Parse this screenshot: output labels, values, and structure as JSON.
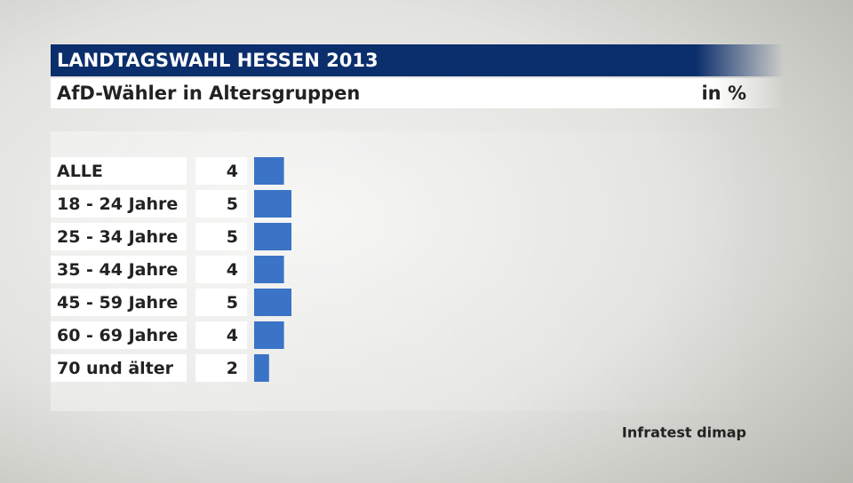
{
  "chart_data": {
    "type": "bar",
    "orientation": "horizontal",
    "title": "LANDTAGSWAHL HESSEN 2013",
    "subtitle": "AfD-Wähler in Altersgruppen",
    "unit": "in %",
    "source": "Infratest dimap",
    "categories": [
      "ALLE",
      "18 - 24 Jahre",
      "25 - 34 Jahre",
      "35 - 44 Jahre",
      "45 - 59 Jahre",
      "60 - 69 Jahre",
      "70 und älter"
    ],
    "values": [
      4,
      5,
      5,
      4,
      5,
      4,
      2
    ],
    "color": "#3b73c6"
  }
}
